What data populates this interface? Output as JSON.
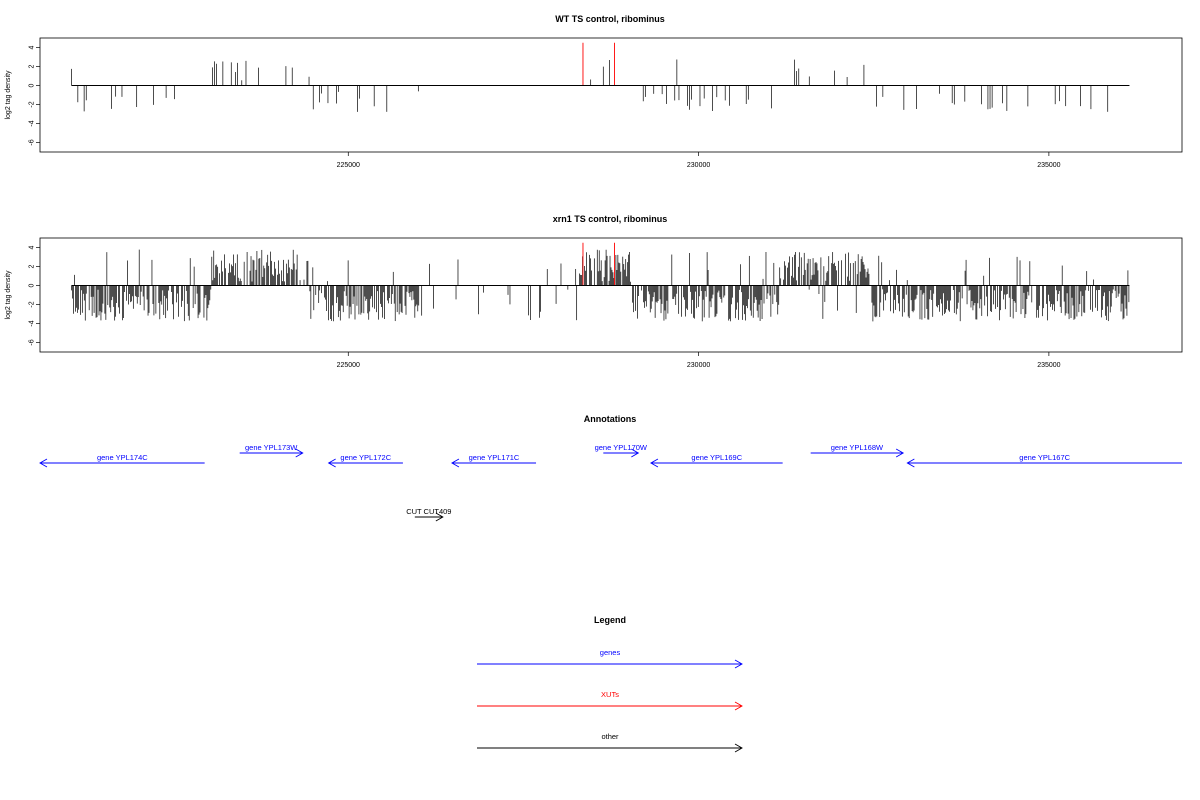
{
  "colors": {
    "gene": "#0000ff",
    "xut": "#ff0000",
    "other": "#000000",
    "signal": "#000000"
  },
  "annotations_title": "Annotations",
  "legend": {
    "title": "Legend",
    "items": [
      {
        "label": "genes",
        "color": "#0000ff"
      },
      {
        "label": "XUTs",
        "color": "#ff0000"
      },
      {
        "label": "other",
        "color": "#000000"
      }
    ]
  },
  "chart_data": [
    {
      "type": "bar",
      "title": "WT TS control, ribominus",
      "xlabel": "",
      "ylabel": "log2 tag density",
      "xlim": [
        220600,
        236900
      ],
      "ylim": [
        -7,
        5
      ],
      "xticks": [
        225000,
        230000,
        235000
      ],
      "xtick_labels": [
        "225000",
        "230000",
        "235000"
      ],
      "yticks": [
        4,
        2,
        0,
        -2,
        -4,
        -6
      ],
      "ytick_labels": [
        "4",
        "2",
        "0",
        "-2",
        "-4",
        "-6"
      ],
      "baseline": 0,
      "x_start": 221050,
      "x_end": 236150,
      "density": "sparse",
      "highlights": [
        {
          "x": 228350,
          "y": 4.5,
          "color": "#ff0000"
        },
        {
          "x": 228800,
          "y": 4.5,
          "color": "#ff0000"
        }
      ]
    },
    {
      "type": "bar",
      "title": "xrn1 TS control, ribominus",
      "xlabel": "",
      "ylabel": "log2 tag density",
      "xlim": [
        220600,
        236900
      ],
      "ylim": [
        -7,
        5
      ],
      "xticks": [
        225000,
        230000,
        235000
      ],
      "xtick_labels": [
        "225000",
        "230000",
        "235000"
      ],
      "yticks": [
        4,
        2,
        0,
        -2,
        -4,
        -6
      ],
      "ytick_labels": [
        "4",
        "2",
        "0",
        "-2",
        "-4",
        "-6"
      ],
      "baseline": 0,
      "x_start": 221050,
      "x_end": 236150,
      "density": "dense",
      "highlights": [
        {
          "x": 228350,
          "y": 4.5,
          "color": "#ff0000"
        },
        {
          "x": 228800,
          "y": 4.5,
          "color": "#ff0000"
        }
      ]
    }
  ],
  "annotations": [
    {
      "label": "gene YPL174C",
      "start": 220600,
      "end": 222950,
      "strand": "-",
      "track": 1,
      "type": "gene"
    },
    {
      "label": "gene YPL173W",
      "start": 223450,
      "end": 224350,
      "strand": "+",
      "track": 0,
      "type": "gene"
    },
    {
      "label": "gene YPL172C",
      "start": 224720,
      "end": 225780,
      "strand": "-",
      "track": 1,
      "type": "gene"
    },
    {
      "label": "gene YPL171C",
      "start": 226480,
      "end": 227680,
      "strand": "-",
      "track": 1,
      "type": "gene"
    },
    {
      "label": "gene YPL170W",
      "start": 228640,
      "end": 229140,
      "strand": "+",
      "track": 0,
      "type": "gene"
    },
    {
      "label": "gene YPL169C",
      "start": 229320,
      "end": 231200,
      "strand": "-",
      "track": 1,
      "type": "gene"
    },
    {
      "label": "gene YPL168W",
      "start": 231600,
      "end": 232920,
      "strand": "+",
      "track": 0,
      "type": "gene"
    },
    {
      "label": "gene YPL167C",
      "start": 232980,
      "end": 236900,
      "strand": "-",
      "track": 1,
      "type": "gene"
    },
    {
      "label": "CUT CUT409",
      "start": 225950,
      "end": 226350,
      "strand": "+",
      "track": 2,
      "type": "other"
    }
  ]
}
